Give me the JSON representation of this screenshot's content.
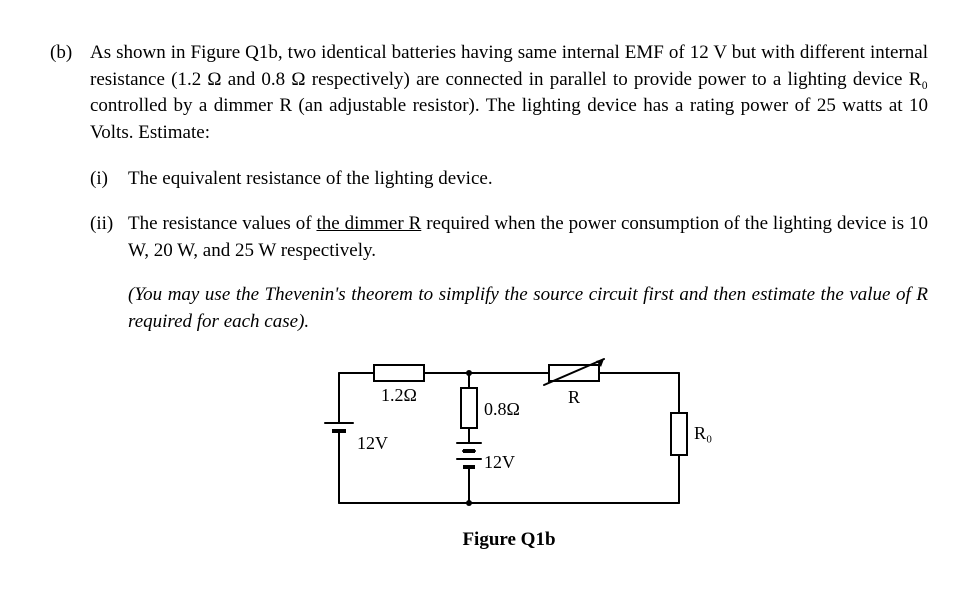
{
  "question": {
    "label": "(b)",
    "intro": "As shown in Figure Q1b, two identical batteries having same internal EMF of 12 V but with different internal resistance (1.2 Ω and 0.8 Ω respectively) are connected in parallel to provide power to a lighting device R₀ controlled by a dimmer R (an adjustable resistor). The lighting device has a rating power of 25 watts at 10 Volts. Estimate:",
    "parts": {
      "i": {
        "label": "(i)",
        "text": "The equivalent resistance of the lighting device."
      },
      "ii": {
        "label": "(ii)",
        "text_pre": "The resistance values of ",
        "text_underlined": "the dimmer R",
        "text_post": " required when the power consumption of the lighting device is 10 W, 20 W, and 25 W respectively.",
        "hint": "(You may use the Thevenin's theorem to simplify the source circuit first and then estimate the value of R required for each case)."
      }
    }
  },
  "circuit": {
    "battery1": {
      "emf": "12V",
      "r": "1.2Ω"
    },
    "battery2": {
      "emf": "12V",
      "r": "0.8Ω"
    },
    "dimmer": "R",
    "load": "R₀",
    "caption": "Figure Q1b",
    "wire_color": "#000000",
    "wire_width": 2,
    "text_color": "#000000",
    "font_size": 18,
    "font_family": "Times New Roman"
  }
}
